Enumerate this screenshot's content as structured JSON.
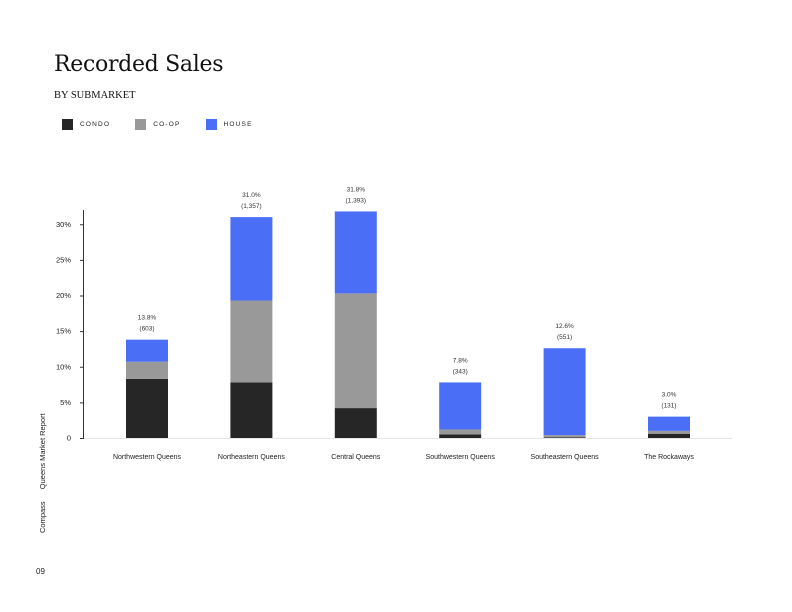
{
  "header": {
    "title": "Recorded Sales",
    "subtitle": "BY SUBMARKET"
  },
  "legend": [
    {
      "label": "CONDO",
      "color": "#262626"
    },
    {
      "label": "CO-OP",
      "color": "#999999"
    },
    {
      "label": "HOUSE",
      "color": "#4a6ff6"
    }
  ],
  "footer": {
    "brand": "Compass",
    "report": "Queens Market Report",
    "page": "09"
  },
  "chart_data": {
    "type": "bar",
    "stacked": true,
    "categories": [
      "Northwestern Queens",
      "Northeastern Queens",
      "Central Queens",
      "Southwestern Queens",
      "Southeastern Queens",
      "The Rockaways"
    ],
    "series": [
      {
        "name": "CONDO",
        "color": "#262626",
        "values": [
          8.3,
          7.8,
          4.2,
          0.5,
          0.1,
          0.6
        ]
      },
      {
        "name": "CO-OP",
        "color": "#999999",
        "values": [
          2.4,
          11.5,
          16.1,
          0.7,
          0.3,
          0.4
        ]
      },
      {
        "name": "HOUSE",
        "color": "#4a6ff6",
        "values": [
          3.1,
          11.7,
          11.5,
          6.6,
          12.2,
          2.0
        ]
      }
    ],
    "totals": [
      "13.8%",
      "31.0%",
      "31.8%",
      "7.8%",
      "12.6%",
      "3.0%"
    ],
    "counts": [
      "(603)",
      "(1,357)",
      "(1,393)",
      "(343)",
      "(551)",
      "(131)"
    ],
    "yticks": [
      "0",
      "5%",
      "10%",
      "15%",
      "20%",
      "25%",
      "30%"
    ],
    "ylim": [
      0,
      32
    ],
    "grid": false
  }
}
